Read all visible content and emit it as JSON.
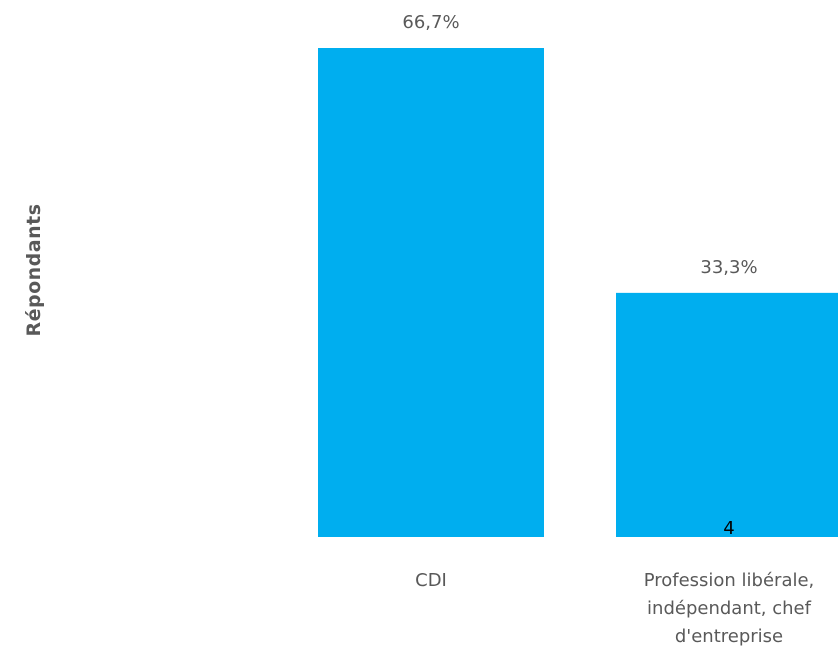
{
  "chart_data": {
    "type": "bar",
    "ylabel": "Répondants",
    "xlabel": "",
    "title": "",
    "categories": [
      "CDI",
      "Profession libérale, indépendant, chef d'entreprise"
    ],
    "category_lines": [
      [
        "CDI"
      ],
      [
        "Profession libérale,",
        "indépendant, chef",
        "d'entreprise"
      ]
    ],
    "values": [
      66.7,
      33.3
    ],
    "value_labels": [
      "66,7%",
      "33,3%"
    ],
    "inner_labels": [
      "",
      "4"
    ],
    "ylim": [
      0,
      66.7
    ],
    "grid": false,
    "bar_color": "#00AEEF"
  }
}
